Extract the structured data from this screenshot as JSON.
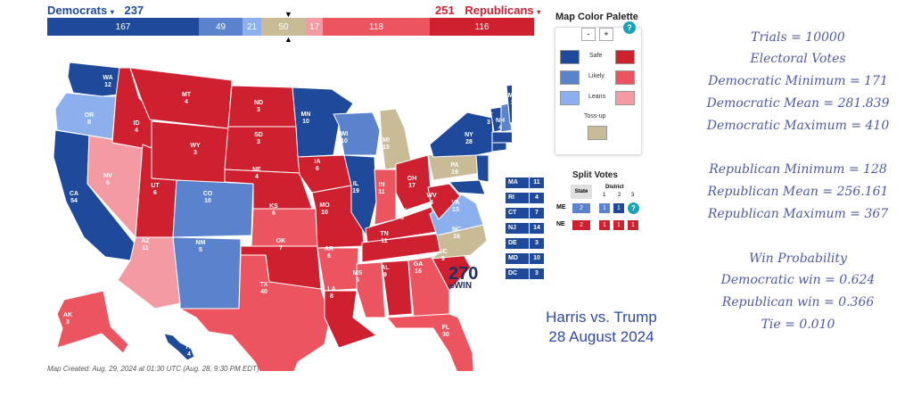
{
  "header": {
    "dem_label": "Democrats",
    "dem_total": "237",
    "rep_total": "251",
    "rep_label": "Republicans",
    "dem_color": "#1f4a9c",
    "rep_color": "#cf2030"
  },
  "bar": {
    "dem_safe": "167",
    "dem_likely": "49",
    "dem_leans": "21",
    "tossup": "50",
    "rep_leans": "17",
    "rep_likely": "118",
    "rep_safe": "116"
  },
  "palette": {
    "title": "Map Color Palette",
    "minus": "-",
    "plus": "+",
    "help": "?",
    "safe": "Safe",
    "likely": "Likely",
    "leans": "Leans",
    "tossup": "Toss-up"
  },
  "split": {
    "title": "Split Votes",
    "state_hdr": "State",
    "district_hdr": "District",
    "d1": "1",
    "d2": "2",
    "d3": "3",
    "me": {
      "label": "ME",
      "state": "2",
      "d1": "1",
      "d2": "1"
    },
    "ne": {
      "label": "NE",
      "state": "2",
      "d1": "1",
      "d2": "1",
      "d3": "1"
    }
  },
  "small_states": [
    {
      "abbr": "MA",
      "ev": "11"
    },
    {
      "abbr": "RI",
      "ev": "4"
    },
    {
      "abbr": "CT",
      "ev": "7"
    },
    {
      "abbr": "NJ",
      "ev": "14"
    },
    {
      "abbr": "DE",
      "ev": "3"
    },
    {
      "abbr": "MD",
      "ev": "10"
    },
    {
      "abbr": "DC",
      "ev": "3"
    }
  ],
  "map_labels": [
    {
      "abbr": "WA",
      "ev": "12",
      "c": "safe_d"
    },
    {
      "abbr": "OR",
      "ev": "8",
      "c": "leans_d"
    },
    {
      "abbr": "CA",
      "ev": "54",
      "c": "safe_d"
    },
    {
      "abbr": "NV",
      "ev": "6",
      "c": "leans_r"
    },
    {
      "abbr": "ID",
      "ev": "4",
      "c": "safe_r"
    },
    {
      "abbr": "MT",
      "ev": "4",
      "c": "safe_r"
    },
    {
      "abbr": "WY",
      "ev": "3",
      "c": "safe_r"
    },
    {
      "abbr": "UT",
      "ev": "6",
      "c": "safe_r"
    },
    {
      "abbr": "AZ",
      "ev": "11",
      "c": "leans_r"
    },
    {
      "abbr": "CO",
      "ev": "10",
      "c": "likely_d"
    },
    {
      "abbr": "NM",
      "ev": "5",
      "c": "likely_d"
    },
    {
      "abbr": "ND",
      "ev": "3",
      "c": "safe_r"
    },
    {
      "abbr": "SD",
      "ev": "3",
      "c": "safe_r"
    },
    {
      "abbr": "NE",
      "ev": "4",
      "c": "safe_r"
    },
    {
      "abbr": "KS",
      "ev": "6",
      "c": "likely_r"
    },
    {
      "abbr": "OK",
      "ev": "7",
      "c": "safe_r"
    },
    {
      "abbr": "TX",
      "ev": "40",
      "c": "likely_r"
    },
    {
      "abbr": "MN",
      "ev": "10",
      "c": "safe_d"
    },
    {
      "abbr": "IA",
      "ev": "6",
      "c": "safe_r"
    },
    {
      "abbr": "MO",
      "ev": "10",
      "c": "safe_r"
    },
    {
      "abbr": "AR",
      "ev": "6",
      "c": "likely_r"
    },
    {
      "abbr": "LA",
      "ev": "8",
      "c": "safe_r"
    },
    {
      "abbr": "WI",
      "ev": "10",
      "c": "likely_d"
    },
    {
      "abbr": "IL",
      "ev": "19",
      "c": "safe_d"
    },
    {
      "abbr": "MI",
      "ev": "15",
      "c": "tossup"
    },
    {
      "abbr": "IN",
      "ev": "11",
      "c": "likely_r"
    },
    {
      "abbr": "OH",
      "ev": "17",
      "c": "safe_r"
    },
    {
      "abbr": "KY",
      "ev": "8",
      "c": "safe_r"
    },
    {
      "abbr": "TN",
      "ev": "11",
      "c": "safe_r"
    },
    {
      "abbr": "MS",
      "ev": "6",
      "c": "likely_r"
    },
    {
      "abbr": "AL",
      "ev": "9",
      "c": "safe_r"
    },
    {
      "abbr": "GA",
      "ev": "16",
      "c": "likely_r"
    },
    {
      "abbr": "FL",
      "ev": "30",
      "c": "likely_r"
    },
    {
      "abbr": "SC",
      "ev": "9",
      "c": "safe_r"
    },
    {
      "abbr": "NC",
      "ev": "16",
      "c": "tossup"
    },
    {
      "abbr": "VA",
      "ev": "13",
      "c": "leans_d"
    },
    {
      "abbr": "WV",
      "ev": "4",
      "c": "safe_r"
    },
    {
      "abbr": "PA",
      "ev": "19",
      "c": "tossup"
    },
    {
      "abbr": "NY",
      "ev": "28",
      "c": "safe_d"
    },
    {
      "abbr": "VT",
      "ev": "3",
      "c": "safe_d"
    },
    {
      "abbr": "NH",
      "ev": "4",
      "c": "likely_d"
    },
    {
      "abbr": "ME",
      "ev": "3",
      "c": "safe_d"
    },
    {
      "abbr": "AK",
      "ev": "3",
      "c": "likely_r"
    },
    {
      "abbr": "HI",
      "ev": "4",
      "c": "safe_d"
    }
  ],
  "colors": {
    "safe_d": "#1f4a9c",
    "likely_d": "#5b82cc",
    "leans_d": "#8cb0ee",
    "tossup": "#c8bb95",
    "leans_r": "#f39aa2",
    "likely_r": "#ec5560",
    "safe_r": "#cf2030"
  },
  "logo": {
    "num": "270",
    "to": "to",
    "win": "WIN"
  },
  "footer": "Map Created: Aug. 29, 2024 at 01:30 UTC (Aug. 28, 9:30 PM EDT)",
  "caption": {
    "line1": "Harris vs. Trump",
    "line2": "28 August 2024"
  },
  "stats": {
    "trials": "Trials = 10000",
    "ev_title": "Electoral Votes",
    "dem_min": "Democratic Minimum = 171",
    "dem_mean": "Democratic Mean = 281.839",
    "dem_max": "Democratic Maximum = 410",
    "rep_min": "Republican Minimum = 128",
    "rep_mean": "Republican Mean = 256.161",
    "rep_max": "Republican Maximum = 367",
    "win_title": "Win Probability",
    "dem_win": "Democratic win = 0.624",
    "rep_win": "Republican win = 0.366",
    "tie": "Tie = 0.010"
  }
}
